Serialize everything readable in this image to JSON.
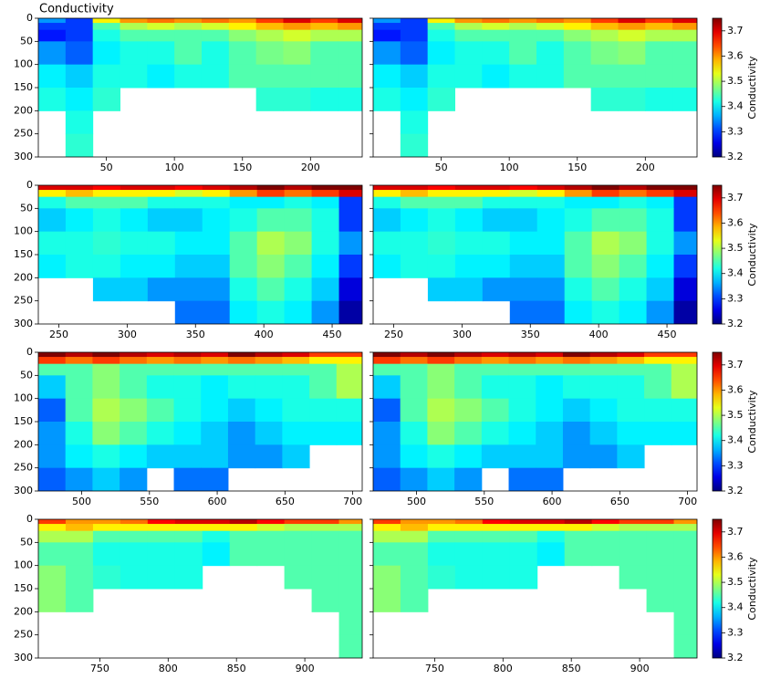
{
  "title": "Conductivity",
  "chart_data": [
    {
      "type": "heatmap",
      "colormap": "jet",
      "xbins": [
        0,
        20,
        40,
        60,
        80,
        100,
        120,
        140,
        160,
        180,
        200,
        220,
        238
      ],
      "ybins": [
        0,
        10,
        25,
        50,
        100,
        150,
        200,
        250,
        300
      ],
      "values": [
        [
          3.35,
          3.3,
          3.55,
          3.6,
          3.62,
          3.6,
          3.62,
          3.6,
          3.65,
          3.7,
          3.65,
          3.7
        ],
        [
          3.3,
          3.3,
          3.45,
          3.5,
          3.52,
          3.5,
          3.52,
          3.55,
          3.58,
          3.6,
          3.58,
          3.6
        ],
        [
          3.28,
          3.3,
          3.42,
          3.45,
          3.45,
          3.45,
          3.45,
          3.48,
          3.5,
          3.52,
          3.5,
          3.5
        ],
        [
          3.35,
          3.32,
          3.4,
          3.42,
          3.42,
          3.45,
          3.42,
          3.45,
          3.47,
          3.48,
          3.45,
          3.45
        ],
        [
          3.4,
          3.38,
          3.42,
          3.42,
          3.4,
          3.42,
          3.42,
          3.45,
          3.45,
          3.45,
          3.45,
          3.45
        ],
        [
          3.42,
          3.4,
          3.43,
          null,
          null,
          null,
          null,
          null,
          3.43,
          3.43,
          3.42,
          3.42
        ],
        [
          null,
          3.42,
          null,
          null,
          null,
          null,
          null,
          null,
          null,
          null,
          null,
          null
        ],
        [
          null,
          3.43,
          null,
          null,
          null,
          null,
          null,
          null,
          null,
          null,
          null,
          null
        ]
      ],
      "xlim": [
        0,
        238
      ],
      "xticks": [
        50,
        100,
        150,
        200
      ],
      "ylim": [
        300,
        0
      ],
      "yticks": [
        0,
        50,
        100,
        150,
        200,
        250,
        300
      ],
      "clim": [
        3.2,
        3.75
      ],
      "cticks": [
        3.2,
        3.3,
        3.4,
        3.5,
        3.6,
        3.7
      ],
      "clabel": "Conductivity"
    },
    {
      "type": "heatmap",
      "colormap": "jet",
      "xbins": [
        235,
        255,
        275,
        295,
        315,
        335,
        355,
        375,
        395,
        415,
        435,
        455,
        472
      ],
      "ybins": [
        0,
        10,
        25,
        50,
        100,
        150,
        200,
        250,
        300
      ],
      "values": [
        [
          3.7,
          3.7,
          3.68,
          3.7,
          3.7,
          3.68,
          3.7,
          3.72,
          3.75,
          3.72,
          3.75,
          3.75
        ],
        [
          3.55,
          3.58,
          3.55,
          3.55,
          3.55,
          3.52,
          3.55,
          3.6,
          3.65,
          3.62,
          3.65,
          3.7
        ],
        [
          3.42,
          3.45,
          3.45,
          3.45,
          3.42,
          3.42,
          3.42,
          3.4,
          3.4,
          3.42,
          3.4,
          3.3
        ],
        [
          3.38,
          3.4,
          3.42,
          3.4,
          3.38,
          3.38,
          3.4,
          3.42,
          3.45,
          3.45,
          3.42,
          3.3
        ],
        [
          3.42,
          3.42,
          3.43,
          3.42,
          3.42,
          3.4,
          3.4,
          3.45,
          3.5,
          3.48,
          3.42,
          3.35
        ],
        [
          3.4,
          3.42,
          3.42,
          3.4,
          3.4,
          3.38,
          3.38,
          3.45,
          3.48,
          3.45,
          3.4,
          3.3
        ],
        [
          null,
          null,
          3.38,
          3.38,
          3.35,
          3.35,
          3.35,
          3.42,
          3.45,
          3.42,
          3.38,
          3.25
        ],
        [
          null,
          null,
          null,
          null,
          null,
          3.33,
          3.33,
          3.4,
          3.42,
          3.4,
          3.35,
          3.22
        ]
      ],
      "xlim": [
        235,
        472
      ],
      "xticks": [
        250,
        300,
        350,
        400,
        450
      ],
      "ylim": [
        300,
        0
      ],
      "yticks": [
        0,
        50,
        100,
        150,
        200,
        250,
        300
      ],
      "clim": [
        3.2,
        3.75
      ],
      "cticks": [
        3.2,
        3.3,
        3.4,
        3.5,
        3.6,
        3.7
      ],
      "clabel": "Conductivity"
    },
    {
      "type": "heatmap",
      "colormap": "jet",
      "xbins": [
        468,
        488,
        508,
        528,
        548,
        568,
        588,
        608,
        628,
        648,
        668,
        688,
        707
      ],
      "ybins": [
        0,
        10,
        25,
        50,
        100,
        150,
        200,
        250,
        300
      ],
      "values": [
        [
          3.75,
          3.72,
          3.75,
          3.72,
          3.7,
          3.72,
          3.7,
          3.75,
          3.72,
          3.7,
          3.65,
          3.65
        ],
        [
          3.65,
          3.62,
          3.65,
          3.62,
          3.6,
          3.62,
          3.6,
          3.62,
          3.6,
          3.58,
          3.55,
          3.55
        ],
        [
          3.45,
          3.45,
          3.48,
          3.45,
          3.45,
          3.45,
          3.45,
          3.45,
          3.45,
          3.45,
          3.45,
          3.5
        ],
        [
          3.38,
          3.45,
          3.48,
          3.45,
          3.42,
          3.42,
          3.4,
          3.42,
          3.42,
          3.42,
          3.45,
          3.5
        ],
        [
          3.32,
          3.45,
          3.5,
          3.48,
          3.45,
          3.42,
          3.4,
          3.38,
          3.4,
          3.42,
          3.42,
          3.42
        ],
        [
          3.35,
          3.42,
          3.48,
          3.45,
          3.42,
          3.4,
          3.38,
          3.35,
          3.38,
          3.4,
          3.4,
          3.4
        ],
        [
          3.35,
          3.4,
          3.42,
          3.4,
          3.38,
          3.38,
          3.38,
          3.35,
          3.35,
          3.38,
          null,
          null
        ],
        [
          3.32,
          3.35,
          3.38,
          3.35,
          null,
          3.33,
          3.33,
          null,
          null,
          null,
          null,
          null
        ]
      ],
      "xlim": [
        468,
        707
      ],
      "xticks": [
        500,
        550,
        600,
        650,
        700
      ],
      "ylim": [
        300,
        0
      ],
      "yticks": [
        0,
        50,
        100,
        150,
        200,
        250,
        300
      ],
      "clim": [
        3.2,
        3.75
      ],
      "cticks": [
        3.2,
        3.3,
        3.4,
        3.5,
        3.6,
        3.7
      ],
      "clabel": "Conductivity"
    },
    {
      "type": "heatmap",
      "colormap": "jet",
      "xbins": [
        705,
        725,
        745,
        765,
        785,
        805,
        825,
        845,
        865,
        885,
        905,
        925,
        942
      ],
      "ybins": [
        0,
        10,
        25,
        50,
        100,
        150,
        200,
        250,
        300
      ],
      "values": [
        [
          3.65,
          3.6,
          3.6,
          3.62,
          3.68,
          3.7,
          3.7,
          3.72,
          3.68,
          3.65,
          3.65,
          3.6
        ],
        [
          3.55,
          3.58,
          3.55,
          3.55,
          3.55,
          3.55,
          3.55,
          3.55,
          3.52,
          3.5,
          3.5,
          3.5
        ],
        [
          3.5,
          3.5,
          3.45,
          3.45,
          3.45,
          3.45,
          3.42,
          3.45,
          3.45,
          3.45,
          3.45,
          3.45
        ],
        [
          3.45,
          3.45,
          3.42,
          3.42,
          3.42,
          3.42,
          3.4,
          3.45,
          3.45,
          3.45,
          3.45,
          3.45
        ],
        [
          3.48,
          3.45,
          3.43,
          3.42,
          3.42,
          3.42,
          null,
          null,
          null,
          3.45,
          3.45,
          3.45
        ],
        [
          3.48,
          3.45,
          null,
          null,
          null,
          null,
          null,
          null,
          null,
          null,
          3.45,
          3.45
        ],
        [
          null,
          null,
          null,
          null,
          null,
          null,
          null,
          null,
          null,
          null,
          null,
          3.45
        ],
        [
          null,
          null,
          null,
          null,
          null,
          null,
          null,
          null,
          null,
          null,
          null,
          3.45
        ]
      ],
      "xlim": [
        705,
        942
      ],
      "xticks": [
        750,
        800,
        850,
        900
      ],
      "ylim": [
        300,
        0
      ],
      "yticks": [
        0,
        50,
        100,
        150,
        200,
        250,
        300
      ],
      "clim": [
        3.2,
        3.75
      ],
      "cticks": [
        3.2,
        3.3,
        3.4,
        3.5,
        3.6,
        3.7
      ],
      "clabel": "Conductivity"
    }
  ]
}
